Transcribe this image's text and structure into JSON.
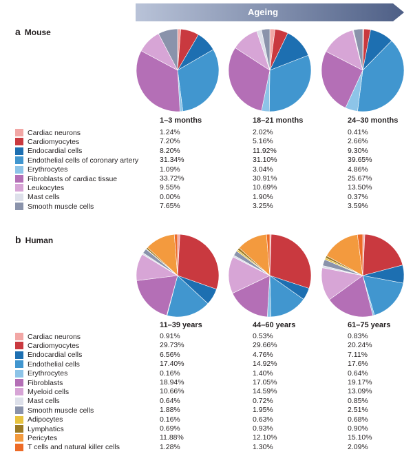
{
  "colors": {
    "Cardiac neurons": "#f2a7a5",
    "Cardiomyocytes": "#c9393f",
    "Endocardial cells": "#1d6fb1",
    "Endothelial cells of coronary artery": "#4196cf",
    "Endothelial cells": "#4196cf",
    "Erythrocytes": "#8dc4e8",
    "Fibroblasts of cardiac tissue": "#b46fb6",
    "Fibroblasts": "#b46fb6",
    "Leukocytes": "#d7a5d6",
    "Myeloid cells": "#d7a5d6",
    "Mast cells": "#dde0ea",
    "Smooth muscle cells": "#8a93ab",
    "Adipocytes": "#e7c33f",
    "Lymphatics": "#9c7a24",
    "Pericytes": "#f39a3e",
    "T cells and natural killer cells": "#ed6b27"
  },
  "header": {
    "arrow_label": "Ageing"
  },
  "mouse": {
    "letter": "a",
    "title": "Mouse",
    "chart_data": {
      "type": "pie",
      "title": "Mouse",
      "categories": [
        "Cardiac neurons",
        "Cardiomyocytes",
        "Endocardial cells",
        "Endothelial cells of coronary artery",
        "Erythrocytes",
        "Fibroblasts of cardiac tissue",
        "Leukocytes",
        "Mast cells",
        "Smooth muscle cells"
      ],
      "series": [
        {
          "name": "1–3 months",
          "values": [
            1.24,
            7.2,
            8.2,
            31.34,
            1.09,
            33.72,
            9.55,
            0.0,
            7.65
          ]
        },
        {
          "name": "18–21 months",
          "values": [
            2.02,
            5.16,
            11.92,
            31.1,
            3.04,
            30.91,
            10.69,
            1.9,
            3.25
          ]
        },
        {
          "name": "24–30 months",
          "values": [
            0.41,
            2.66,
            9.3,
            39.65,
            4.86,
            25.67,
            13.5,
            0.37,
            3.59
          ]
        }
      ],
      "labels": [
        [
          "1.24%",
          "7.20%",
          "8.20%",
          "31.34%",
          "1.09%",
          "33.72%",
          "9.55%",
          "0.00%",
          "7.65%"
        ],
        [
          "2.02%",
          "5.16%",
          "11.92%",
          "31.10%",
          "3.04%",
          "30.91%",
          "10.69%",
          "1.90%",
          "3.25%"
        ],
        [
          "0.41%",
          "2.66%",
          "9.30%",
          "39.65%",
          "4.86%",
          "25.67%",
          "13.50%",
          "0.37%",
          "3.59%"
        ]
      ]
    }
  },
  "human": {
    "letter": "b",
    "title": "Human",
    "chart_data": {
      "type": "pie",
      "title": "Human",
      "categories": [
        "Cardiac neurons",
        "Cardiomyocytes",
        "Endocardial cells",
        "Endothelial cells",
        "Erythrocytes",
        "Fibroblasts",
        "Myeloid cells",
        "Mast cells",
        "Smooth muscle cells",
        "Adipocytes",
        "Lymphatics",
        "Pericytes",
        "T cells and natural killer cells"
      ],
      "series": [
        {
          "name": "11–39 years",
          "values": [
            0.91,
            29.73,
            6.56,
            17.4,
            0.16,
            18.94,
            10.66,
            0.64,
            1.88,
            0.16,
            0.69,
            11.88,
            1.28
          ]
        },
        {
          "name": "44–60 years",
          "values": [
            0.53,
            29.66,
            4.76,
            14.92,
            1.4,
            17.05,
            14.59,
            0.72,
            1.95,
            0.63,
            0.93,
            12.1,
            1.3
          ]
        },
        {
          "name": "61–75 years",
          "values": [
            0.83,
            20.24,
            7.11,
            17.6,
            0.64,
            19.17,
            13.09,
            0.85,
            2.51,
            0.68,
            0.9,
            15.1,
            2.09
          ]
        }
      ],
      "labels": [
        [
          "0.91%",
          "29.73%",
          "6.56%",
          "17.40%",
          "0.16%",
          "18.94%",
          "10.66%",
          "0.64%",
          "1.88%",
          "0.16%",
          "0.69%",
          "11.88%",
          "1.28%"
        ],
        [
          "0.53%",
          "29.66%",
          "4.76%",
          "14.92%",
          "1.40%",
          "17.05%",
          "14.59%",
          "0.72%",
          "1.95%",
          "0.63%",
          "0.93%",
          "12.10%",
          "1.30%"
        ],
        [
          "0.83%",
          "20.24%",
          "7.11%",
          "17.6%",
          "0.64%",
          "19.17%",
          "13.09%",
          "0.85%",
          "2.51%",
          "0.68%",
          "0.90%",
          "15.10%",
          "2.09%"
        ]
      ]
    }
  }
}
